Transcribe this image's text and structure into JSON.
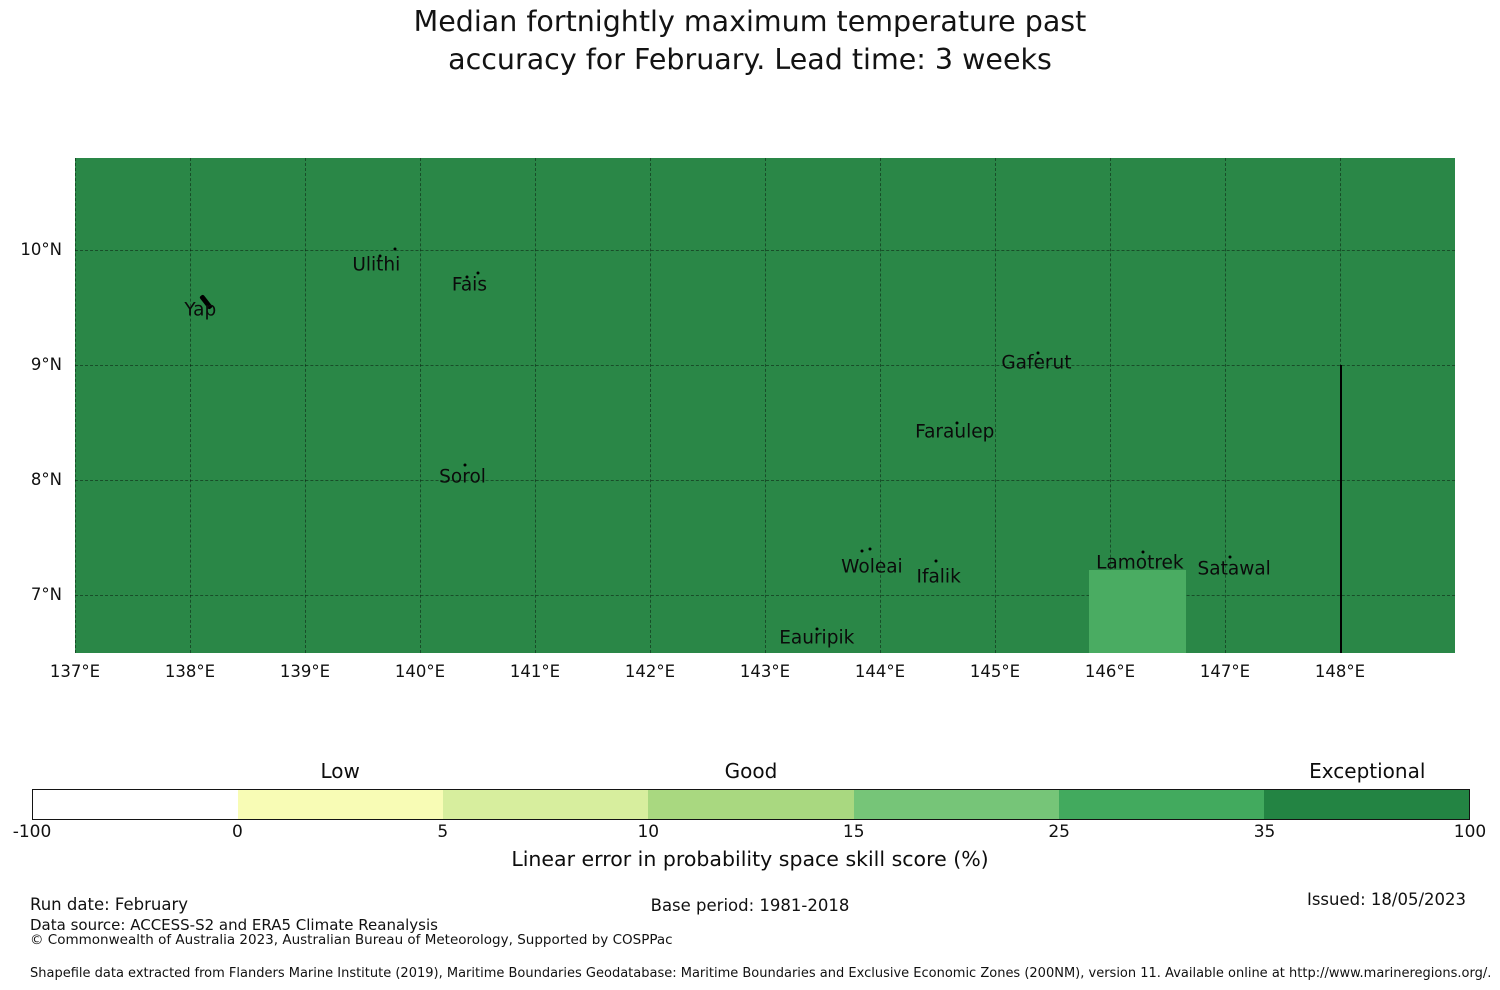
{
  "title": {
    "line1": "Median fortnightly maximum temperature past",
    "line2": "accuracy for February. Lead time: 3 weeks"
  },
  "chart_data": {
    "type": "heatmap",
    "title": "Median fortnightly maximum temperature past accuracy for February. Lead time: 3 weeks",
    "map_fill_color": "#2a8747",
    "grid": true,
    "x_axis": {
      "range": [
        137.0,
        149.0
      ],
      "tick_values": [
        137,
        138,
        139,
        140,
        141,
        142,
        143,
        144,
        145,
        146,
        147,
        148
      ],
      "tick_labels": [
        "137°E",
        "138°E",
        "139°E",
        "140°E",
        "141°E",
        "142°E",
        "143°E",
        "144°E",
        "145°E",
        "146°E",
        "147°E",
        "148°E"
      ]
    },
    "y_axis": {
      "range": [
        6.5,
        10.8
      ],
      "tick_values": [
        10,
        9,
        8,
        7
      ],
      "tick_labels": [
        "10°N",
        "9°N",
        "8°N",
        "7°N"
      ]
    },
    "background_band": "35 to 100",
    "regions": [
      {
        "band": "25 to 35",
        "color": "#4aac62",
        "lon_min": 145.82,
        "lon_max": 146.66,
        "lat_min": 6.5,
        "lat_max": 7.22
      }
    ],
    "boundary_line": {
      "lon": 148.0,
      "lat_from": 9.0,
      "lat_to": 6.5,
      "color": "#000000"
    },
    "islands": [
      {
        "name": "Yap",
        "lon": 138.09,
        "lat": 9.48,
        "shape": "streak",
        "shape_lon": 138.14,
        "shape_lat": 9.55,
        "dots": []
      },
      {
        "name": "Ulithi",
        "lon": 139.62,
        "lat": 9.87,
        "dots": [
          {
            "lon": 139.78,
            "lat": 10.01
          },
          {
            "lon": 139.65,
            "lat": 9.95
          }
        ]
      },
      {
        "name": "Fais",
        "lon": 140.43,
        "lat": 9.7,
        "dots": [
          {
            "lon": 140.41,
            "lat": 9.77
          },
          {
            "lon": 140.5,
            "lat": 9.8
          }
        ]
      },
      {
        "name": "Sorol",
        "lon": 140.37,
        "lat": 8.03,
        "dots": [
          {
            "lon": 140.39,
            "lat": 8.13
          }
        ]
      },
      {
        "name": "Gaferut",
        "lon": 145.36,
        "lat": 9.02,
        "dots": [
          {
            "lon": 145.37,
            "lat": 9.11
          }
        ]
      },
      {
        "name": "Faraulep",
        "lon": 144.65,
        "lat": 8.42,
        "dots": [
          {
            "lon": 144.67,
            "lat": 8.5
          }
        ]
      },
      {
        "name": "Woleai",
        "lon": 143.93,
        "lat": 7.25,
        "dots": [
          {
            "lon": 143.84,
            "lat": 7.39
          },
          {
            "lon": 143.91,
            "lat": 7.4
          }
        ]
      },
      {
        "name": "Ifalik",
        "lon": 144.51,
        "lat": 7.16,
        "dots": [
          {
            "lon": 144.49,
            "lat": 7.3
          }
        ]
      },
      {
        "name": "Eauripik",
        "lon": 143.45,
        "lat": 6.63,
        "dots": [
          {
            "lon": 143.45,
            "lat": 6.71
          }
        ]
      },
      {
        "name": "Lamotrek",
        "lon": 146.26,
        "lat": 7.28,
        "dots": [
          {
            "lon": 146.29,
            "lat": 7.38
          }
        ]
      },
      {
        "name": "Satawal",
        "lon": 147.08,
        "lat": 7.23,
        "dots": [
          {
            "lon": 147.04,
            "lat": 7.33
          }
        ]
      }
    ],
    "colorbar": {
      "axis_label": "Linear error in probability space skill score (%)",
      "tick_labels": [
        "-100",
        "0",
        "5",
        "10",
        "15",
        "25",
        "35",
        "100"
      ],
      "segments": [
        {
          "range": "-100 to 0",
          "color": "#ffffff"
        },
        {
          "range": "0 to 5",
          "color": "#f8fcb5",
          "category": "Low"
        },
        {
          "range": "5 to 10",
          "color": "#d7ee9e"
        },
        {
          "range": "10 to 15",
          "color": "#a9d880",
          "category": "Good"
        },
        {
          "range": "15 to 25",
          "color": "#76c578"
        },
        {
          "range": "25 to 35",
          "color": "#42aa5e"
        },
        {
          "range": "35 to 100",
          "color": "#238443",
          "category": "Exceptional"
        }
      ]
    }
  },
  "footer": {
    "run_date": "Run date: February",
    "base_period": "Base period: 1981-2018",
    "issued": "Issued: 18/05/2023",
    "data_source": "Data source: ACCESS-S2 and ERA5 Climate Reanalysis",
    "copyright": "© Commonwealth of Australia 2023, Australian Bureau of Meteorology, Supported by COSPPac",
    "shapefile_note": "Shapefile data extracted from Flanders Marine Institute (2019), Maritime Boundaries Geodatabase: Maritime Boundaries and Exclusive Economic Zones (200NM), version 11. Available online at http://www.marineregions.org/."
  }
}
